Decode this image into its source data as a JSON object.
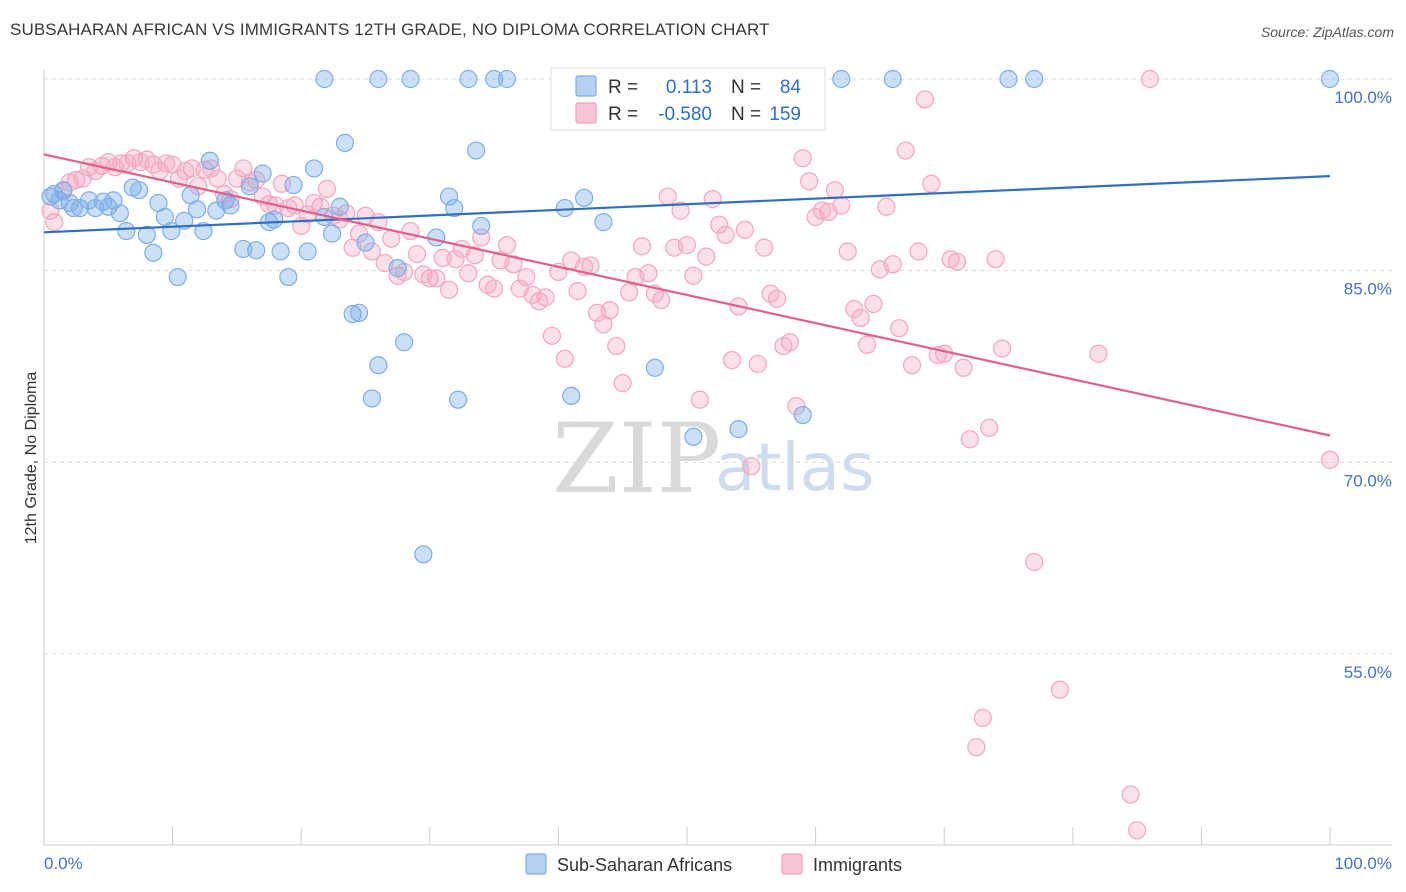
{
  "title": "SUBSAHARAN AFRICAN VS IMMIGRANTS 12TH GRADE, NO DIPLOMA CORRELATION CHART",
  "source": "Source: ZipAtlas.com",
  "watermark": {
    "part1": "ZIP",
    "part2": "atlas"
  },
  "legend": {
    "r_label": "R =",
    "n_label": "N =",
    "rows": [
      {
        "r": "0.113",
        "n": "84"
      },
      {
        "r": "-0.580",
        "n": "159"
      }
    ]
  },
  "bottom_legend": [
    "Sub-Saharan Africans",
    "Immigrants"
  ],
  "chart_data": {
    "type": "scatter",
    "title": "SUBSAHARAN AFRICAN VS IMMIGRANTS 12TH GRADE, NO DIPLOMA CORRELATION CHART",
    "xlabel": "",
    "ylabel": "12th Grade, No Diploma",
    "xlim": [
      0,
      100
    ],
    "ylim": [
      41,
      101
    ],
    "x_tick_labels": [
      "0.0%",
      "100.0%"
    ],
    "y_ticks": [
      100,
      85,
      70,
      55
    ],
    "y_tick_labels": [
      "100.0%",
      "85.0%",
      "70.0%",
      "55.0%"
    ],
    "grid": "horizontal dashed",
    "legend_position": "top-center",
    "series": [
      {
        "name": "Sub-Saharan Africans",
        "color": "#7eaee8",
        "line_color": "#2f6fc6",
        "r": 0.113,
        "n": 84,
        "trend": {
          "x0": 0,
          "y0": 88.0,
          "x1": 100,
          "y1": 92.4
        },
        "points": [
          [
            0.5,
            90.8
          ],
          [
            0.8,
            91.0
          ],
          [
            1.2,
            90.5
          ],
          [
            1.5,
            91.3
          ],
          [
            2,
            90.3
          ],
          [
            2.3,
            89.9
          ],
          [
            2.8,
            89.9
          ],
          [
            3.5,
            90.5
          ],
          [
            4,
            89.9
          ],
          [
            4.6,
            90.4
          ],
          [
            5,
            90.0
          ],
          [
            5.4,
            90.5
          ],
          [
            5.9,
            89.5
          ],
          [
            6.4,
            88.1
          ],
          [
            6.9,
            91.5
          ],
          [
            7.4,
            91.3
          ],
          [
            8,
            87.8
          ],
          [
            8.5,
            86.4
          ],
          [
            8.9,
            90.3
          ],
          [
            9.4,
            89.2
          ],
          [
            9.9,
            88.1
          ],
          [
            10.4,
            84.5
          ],
          [
            10.9,
            88.9
          ],
          [
            11.4,
            90.9
          ],
          [
            11.9,
            89.8
          ],
          [
            12.4,
            88.1
          ],
          [
            12.9,
            93.6
          ],
          [
            13.4,
            89.7
          ],
          [
            14.1,
            90.5
          ],
          [
            14.5,
            90.1
          ],
          [
            15.5,
            86.7
          ],
          [
            16,
            91.6
          ],
          [
            16.5,
            86.6
          ],
          [
            17,
            92.6
          ],
          [
            17.5,
            88.8
          ],
          [
            17.9,
            89.0
          ],
          [
            18.4,
            86.5
          ],
          [
            19,
            84.5
          ],
          [
            19.4,
            91.7
          ],
          [
            20.5,
            86.5
          ],
          [
            21,
            93.0
          ],
          [
            21.8,
            89.2
          ],
          [
            22.4,
            87.9
          ],
          [
            23,
            90.0
          ],
          [
            23.4,
            95.0
          ],
          [
            24,
            81.6
          ],
          [
            24.5,
            81.7
          ],
          [
            25,
            87.2
          ],
          [
            25.5,
            75.0
          ],
          [
            26,
            77.6
          ],
          [
            27.5,
            85.2
          ],
          [
            28,
            79.4
          ],
          [
            28.5,
            100.0
          ],
          [
            29.5,
            62.8
          ],
          [
            30.5,
            87.6
          ],
          [
            31.5,
            90.8
          ],
          [
            31.9,
            89.9
          ],
          [
            32.2,
            74.9
          ],
          [
            33,
            100.0
          ],
          [
            33.6,
            94.4
          ],
          [
            34,
            88.5
          ],
          [
            35,
            100.0
          ],
          [
            36,
            100.0
          ],
          [
            40.5,
            89.9
          ],
          [
            41,
            75.2
          ],
          [
            42,
            90.7
          ],
          [
            43.5,
            88.8
          ],
          [
            47.5,
            77.4
          ],
          [
            50,
            100.0
          ],
          [
            50.5,
            72.0
          ],
          [
            52,
            100.0
          ],
          [
            54,
            72.6
          ],
          [
            59,
            73.7
          ],
          [
            62,
            100.0
          ],
          [
            66,
            100.0
          ],
          [
            75,
            100.0
          ],
          [
            77,
            100.0
          ],
          [
            100,
            100.0
          ],
          [
            26,
            100.0
          ],
          [
            21.8,
            100.0
          ]
        ]
      },
      {
        "name": "Immigrants",
        "color": "#f4a6bf",
        "line_color": "#e0608a",
        "r": -0.58,
        "n": 159,
        "trend": {
          "x0": 0,
          "y0": 94.1,
          "x1": 100,
          "y1": 72.1
        },
        "points": [
          [
            0.5,
            89.7
          ],
          [
            0.8,
            88.8
          ],
          [
            1.5,
            91.2
          ],
          [
            2,
            91.9
          ],
          [
            2.5,
            92.1
          ],
          [
            3,
            92.2
          ],
          [
            3.5,
            93.1
          ],
          [
            4,
            92.8
          ],
          [
            4.5,
            93.2
          ],
          [
            5,
            93.5
          ],
          [
            5.5,
            93.1
          ],
          [
            6,
            93.4
          ],
          [
            6.5,
            93.4
          ],
          [
            7,
            93.8
          ],
          [
            7.5,
            93.5
          ],
          [
            8,
            93.7
          ],
          [
            8.5,
            93.3
          ],
          [
            9,
            92.8
          ],
          [
            9.5,
            93.4
          ],
          [
            10,
            93.3
          ],
          [
            10.5,
            92.2
          ],
          [
            11,
            92.8
          ],
          [
            11.5,
            93.0
          ],
          [
            12,
            91.6
          ],
          [
            12.5,
            92.9
          ],
          [
            13,
            93.0
          ],
          [
            13.5,
            92.2
          ],
          [
            14,
            91.0
          ],
          [
            14.5,
            90.6
          ],
          [
            15,
            92.2
          ],
          [
            15.5,
            93.0
          ],
          [
            16,
            91.9
          ],
          [
            16.5,
            92.1
          ],
          [
            17,
            90.8
          ],
          [
            17.5,
            90.2
          ],
          [
            18,
            90.1
          ],
          [
            18.5,
            91.8
          ],
          [
            19,
            89.9
          ],
          [
            19.5,
            90.1
          ],
          [
            20,
            88.5
          ],
          [
            20.5,
            89.4
          ],
          [
            21,
            90.3
          ],
          [
            21.5,
            90.0
          ],
          [
            22,
            91.4
          ],
          [
            22.5,
            89.3
          ],
          [
            23,
            89.0
          ],
          [
            23.5,
            89.5
          ],
          [
            24,
            86.8
          ],
          [
            24.5,
            87.9
          ],
          [
            25,
            89.3
          ],
          [
            25.5,
            86.5
          ],
          [
            26,
            88.8
          ],
          [
            26.5,
            85.6
          ],
          [
            27,
            87.5
          ],
          [
            27.5,
            84.6
          ],
          [
            28,
            84.9
          ],
          [
            28.5,
            88.1
          ],
          [
            29,
            86.3
          ],
          [
            29.5,
            84.7
          ],
          [
            30,
            84.4
          ],
          [
            30.5,
            84.4
          ],
          [
            31,
            86.0
          ],
          [
            31.5,
            83.5
          ],
          [
            32,
            85.9
          ],
          [
            32.5,
            86.7
          ],
          [
            33,
            84.8
          ],
          [
            33.5,
            86.2
          ],
          [
            34,
            87.6
          ],
          [
            34.5,
            83.9
          ],
          [
            35,
            83.6
          ],
          [
            35.5,
            85.8
          ],
          [
            36,
            87.0
          ],
          [
            36.5,
            85.5
          ],
          [
            37,
            83.6
          ],
          [
            37.5,
            84.5
          ],
          [
            38,
            83.1
          ],
          [
            38.5,
            82.6
          ],
          [
            39,
            82.9
          ],
          [
            39.5,
            79.9
          ],
          [
            40,
            84.9
          ],
          [
            40.5,
            78.1
          ],
          [
            41,
            85.8
          ],
          [
            41.5,
            83.4
          ],
          [
            42,
            85.3
          ],
          [
            42.5,
            85.4
          ],
          [
            43,
            81.7
          ],
          [
            43.5,
            80.8
          ],
          [
            44,
            81.9
          ],
          [
            44.5,
            79.1
          ],
          [
            45,
            76.2
          ],
          [
            45.5,
            83.3
          ],
          [
            46,
            84.5
          ],
          [
            46.5,
            86.9
          ],
          [
            47,
            84.8
          ],
          [
            47.5,
            83.2
          ],
          [
            48,
            82.7
          ],
          [
            48.5,
            90.8
          ],
          [
            49,
            86.8
          ],
          [
            49.5,
            89.7
          ],
          [
            50,
            87.0
          ],
          [
            50.5,
            84.6
          ],
          [
            51,
            74.9
          ],
          [
            51.5,
            86.1
          ],
          [
            52,
            90.6
          ],
          [
            52.5,
            88.6
          ],
          [
            53,
            87.8
          ],
          [
            53.5,
            78.0
          ],
          [
            54,
            82.2
          ],
          [
            54.5,
            88.2
          ],
          [
            55,
            69.7
          ],
          [
            55.5,
            77.7
          ],
          [
            56,
            86.8
          ],
          [
            56.5,
            83.2
          ],
          [
            57,
            82.8
          ],
          [
            57.5,
            79.1
          ],
          [
            58,
            79.4
          ],
          [
            58.5,
            74.4
          ],
          [
            59,
            93.8
          ],
          [
            59.5,
            92.0
          ],
          [
            60,
            89.2
          ],
          [
            60.5,
            89.7
          ],
          [
            61,
            89.6
          ],
          [
            61.5,
            91.3
          ],
          [
            62,
            90.1
          ],
          [
            62.5,
            86.5
          ],
          [
            63,
            82.0
          ],
          [
            63.5,
            81.3
          ],
          [
            64,
            79.2
          ],
          [
            64.5,
            82.4
          ],
          [
            65,
            85.1
          ],
          [
            65.5,
            90.0
          ],
          [
            66,
            85.5
          ],
          [
            66.5,
            80.5
          ],
          [
            67,
            94.4
          ],
          [
            67.5,
            77.6
          ],
          [
            68,
            86.5
          ],
          [
            68.5,
            98.4
          ],
          [
            69,
            91.8
          ],
          [
            69.5,
            78.4
          ],
          [
            70,
            78.5
          ],
          [
            70.5,
            85.9
          ],
          [
            71,
            85.7
          ],
          [
            71.5,
            77.4
          ],
          [
            72,
            71.8
          ],
          [
            72.5,
            47.7
          ],
          [
            73,
            50.0
          ],
          [
            73.5,
            72.7
          ],
          [
            74,
            85.9
          ],
          [
            74.5,
            78.9
          ],
          [
            77,
            62.2
          ],
          [
            79,
            52.2
          ],
          [
            82,
            78.5
          ],
          [
            84.5,
            44.0
          ],
          [
            85,
            41.2
          ],
          [
            86,
            100.0
          ],
          [
            100,
            70.2
          ]
        ]
      }
    ]
  }
}
